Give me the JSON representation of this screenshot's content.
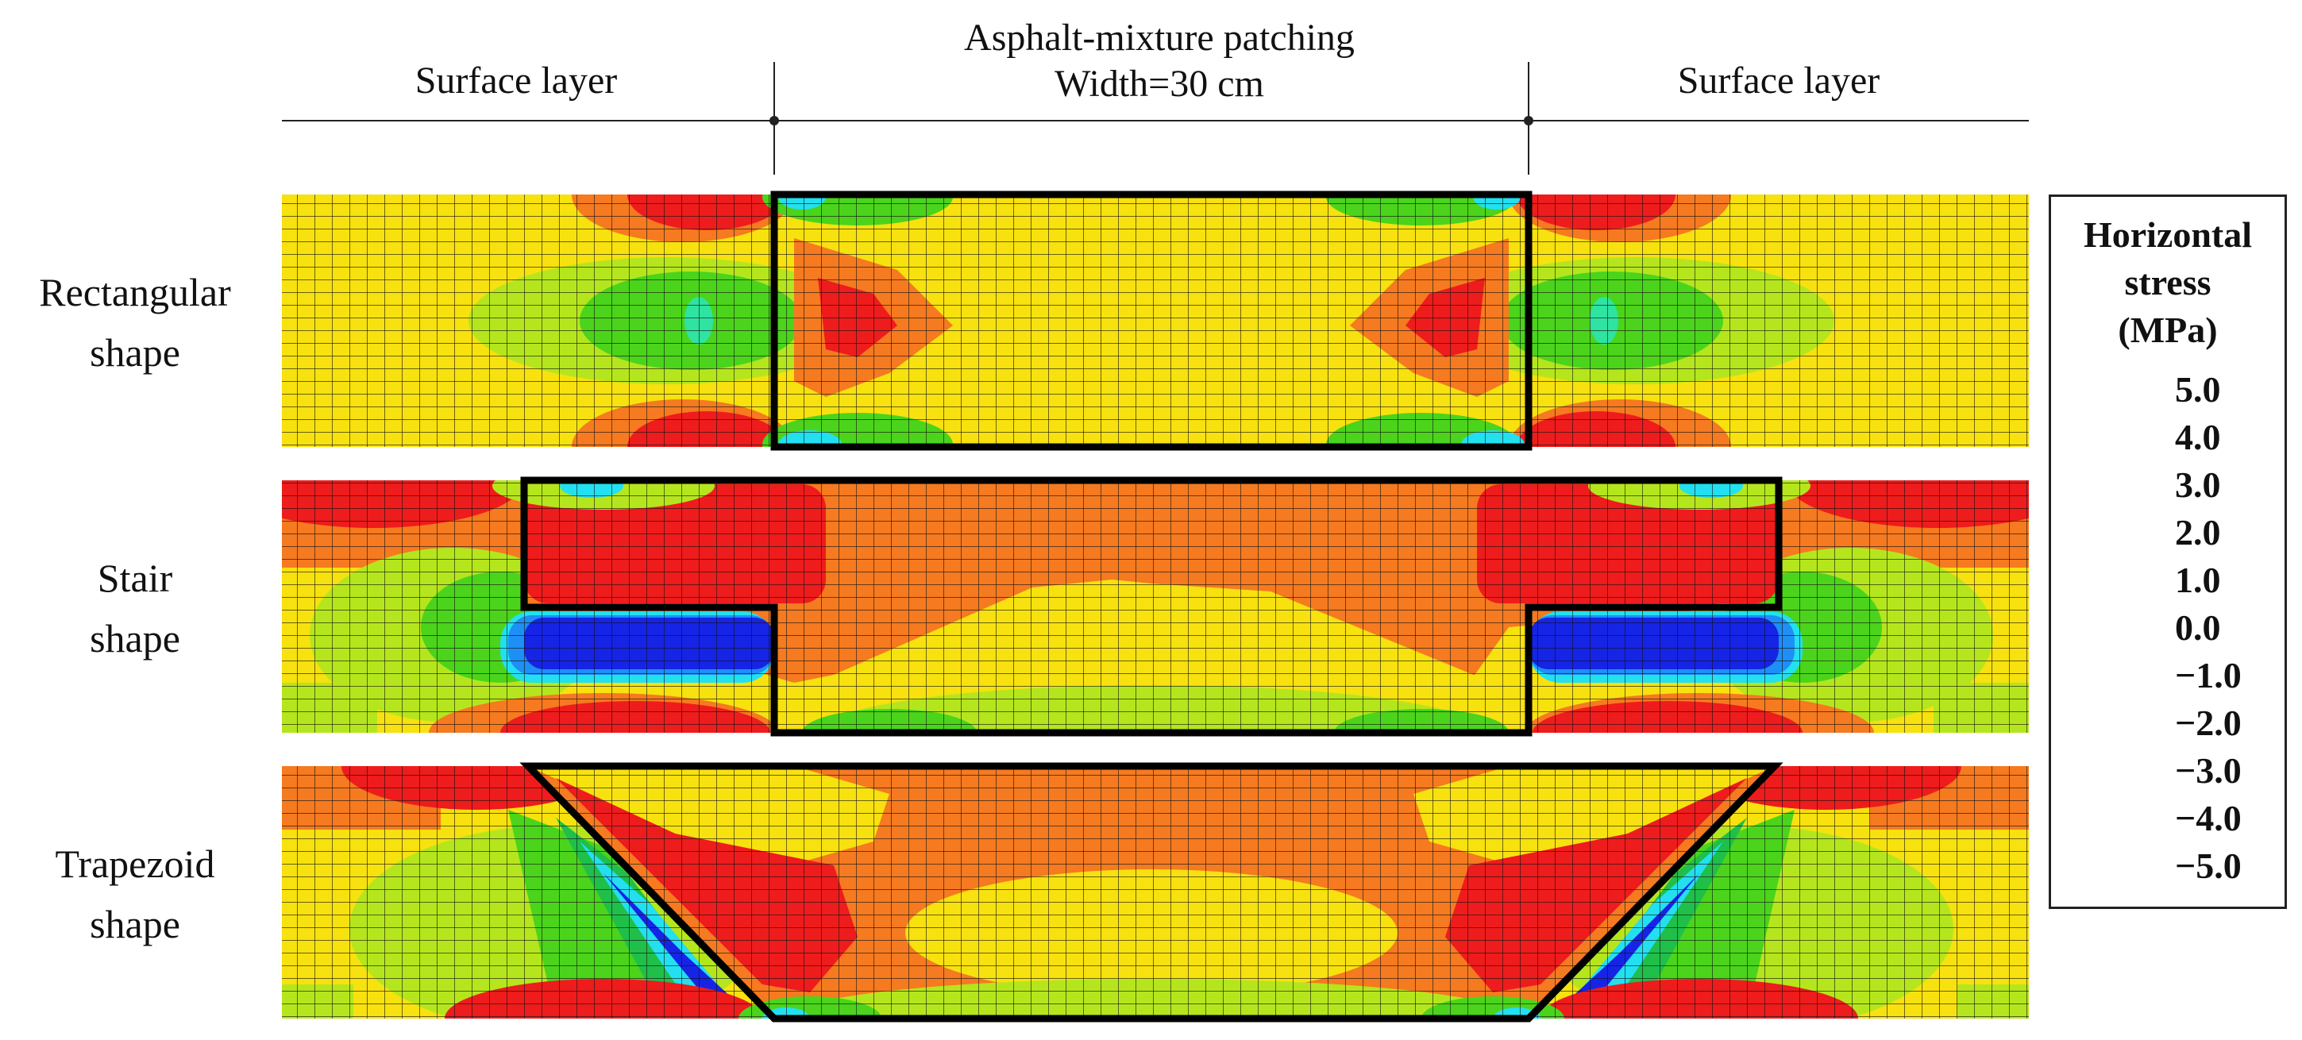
{
  "header": {
    "left_label": "Surface layer",
    "center_label_line1": "Asphalt-mixture patching",
    "center_label_line2": "Width=30 cm",
    "right_label": "Surface layer"
  },
  "rows": [
    {
      "line1": "Rectangular",
      "line2": "shape"
    },
    {
      "line1": "Stair",
      "line2": "shape"
    },
    {
      "line1": "Trapezoid",
      "line2": "shape"
    }
  ],
  "legend": {
    "title_line1": "Horizontal",
    "title_line2": "stress",
    "title_line3": "(MPa)",
    "ticks": [
      "5.0",
      "4.0",
      "3.0",
      "2.0",
      "1.0",
      "0.0",
      "−1.0",
      "−2.0",
      "−3.0",
      "−4.0",
      "−5.0"
    ],
    "colors": [
      "#ee1c1c",
      "#f57a20",
      "#f7e10f",
      "#b5e61d",
      "#4bd41b",
      "#1fbf4a",
      "#2fe3a0",
      "#22e0f0",
      "#1e8ff5",
      "#1624e6"
    ]
  },
  "palette": {
    "red": "#ee1c1c",
    "orange": "#f57a20",
    "yellow": "#f7e10f",
    "lime": "#b5e61d",
    "green": "#4bd41b",
    "teal": "#1fbf4a",
    "aqua": "#2fe3a0",
    "cyan": "#22e0f0",
    "blue": "#1624e6"
  }
}
